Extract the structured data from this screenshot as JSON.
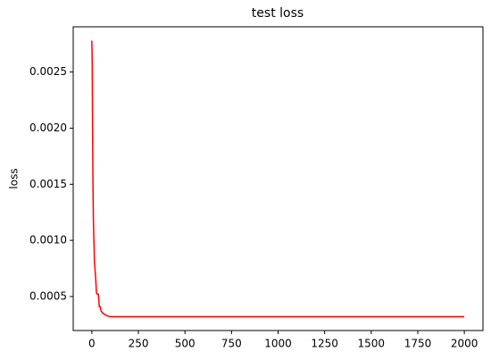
{
  "chart_data": {
    "type": "line",
    "title": "test loss",
    "y_label": "loss",
    "x": [
      0,
      2,
      4,
      6,
      8,
      10,
      12,
      14,
      16,
      18,
      20,
      25,
      30,
      35,
      40,
      45,
      50,
      55,
      60,
      70,
      80,
      100,
      500,
      1000,
      1500,
      2000
    ],
    "series": [
      {
        "name": "test loss",
        "color": "#ff0000",
        "values": [
          0.00278,
          0.0026,
          0.00198,
          0.00153,
          0.00122,
          0.00105,
          0.00095,
          0.0008,
          0.00077,
          0.00072,
          0.00068,
          0.00053,
          0.00052,
          0.00052,
          0.00041,
          0.00041,
          0.00037,
          0.00036,
          0.00035,
          0.00034,
          0.00033,
          0.00032,
          0.00032,
          0.00032,
          0.00032,
          0.00032
        ]
      }
    ],
    "xlim": [
      -100,
      2100
    ],
    "xticks": [
      0,
      250,
      500,
      750,
      1000,
      1250,
      1500,
      1750,
      2000
    ],
    "ylim": [
      0.000197,
      0.002903
    ],
    "yticks": [
      0.0005,
      {
        "value": 0.001,
        "label": "0.0010"
      },
      0.0015,
      {
        "value": 0.002,
        "label": "0.0020"
      },
      0.0025
    ],
    "grid": false
  }
}
